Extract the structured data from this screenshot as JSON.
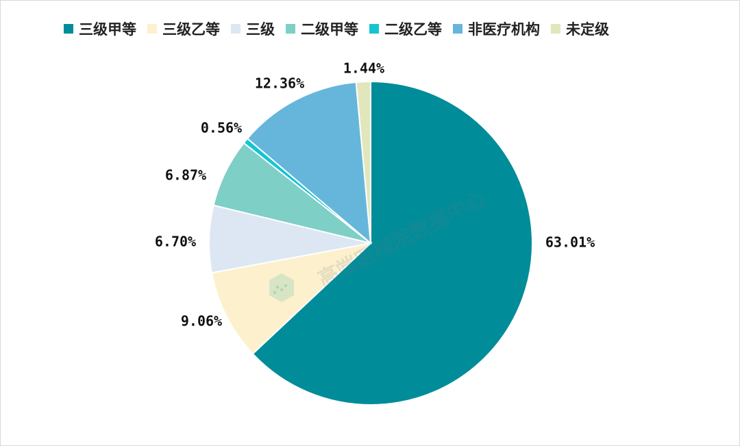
{
  "chart_data": {
    "type": "pie",
    "title": "",
    "categories": [
      "三级甲等",
      "三级乙等",
      "三级",
      "二级甲等",
      "二级乙等",
      "非医疗机构",
      "未定级"
    ],
    "values": [
      63.01,
      9.06,
      6.7,
      6.87,
      0.56,
      12.36,
      1.44
    ],
    "labels": [
      "63.01%",
      "9.06%",
      "6.70%",
      "6.87%",
      "0.56%",
      "12.36%",
      "1.44%"
    ],
    "colors": [
      "#008c99",
      "#fdf0cc",
      "#dde7f3",
      "#7ecfc6",
      "#14c4d4",
      "#66b6dc",
      "#e2e7bb"
    ],
    "legend_position": "top",
    "watermark": "高端医械院数据中心"
  }
}
